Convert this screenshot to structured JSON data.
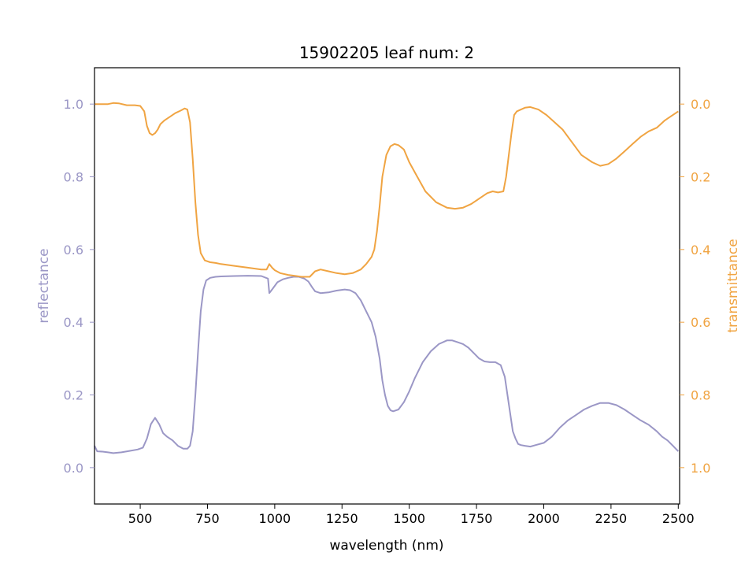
{
  "chart_data": {
    "type": "line",
    "title": "15902205 leaf num: 2",
    "xlabel": "wavelength (nm)",
    "ylabel_left": "reflectance",
    "ylabel_right": "transmittance",
    "xlim": [
      330,
      2505
    ],
    "ylim_left": [
      -0.1,
      1.1
    ],
    "ylim_right": [
      1.1,
      -0.1
    ],
    "right_axis_inverted": true,
    "grid": false,
    "x_ticks": [
      500,
      750,
      1000,
      1250,
      1500,
      1750,
      2000,
      2250,
      2500
    ],
    "y_ticks_left": [
      "0.0",
      "0.2",
      "0.4",
      "0.6",
      "0.8",
      "1.0"
    ],
    "y_ticks_right": [
      "0.0",
      "0.2",
      "0.4",
      "0.6",
      "0.8",
      "1.0"
    ],
    "colors": {
      "reflectance": "#9b97c6",
      "transmittance": "#f0a442"
    },
    "series": [
      {
        "key": "reflectance",
        "axis": "left",
        "x": [
          330,
          340,
          360,
          380,
          400,
          430,
          460,
          490,
          510,
          525,
          540,
          555,
          570,
          585,
          600,
          620,
          640,
          660,
          675,
          685,
          695,
          705,
          715,
          725,
          735,
          745,
          760,
          780,
          800,
          850,
          900,
          950,
          975,
          980,
          990,
          1000,
          1010,
          1030,
          1050,
          1070,
          1090,
          1110,
          1125,
          1140,
          1150,
          1170,
          1200,
          1230,
          1260,
          1280,
          1300,
          1320,
          1340,
          1360,
          1375,
          1390,
          1400,
          1410,
          1420,
          1430,
          1440,
          1460,
          1480,
          1500,
          1520,
          1550,
          1580,
          1610,
          1640,
          1660,
          1680,
          1700,
          1720,
          1740,
          1760,
          1780,
          1800,
          1820,
          1840,
          1855,
          1865,
          1875,
          1885,
          1895,
          1905,
          1915,
          1930,
          1950,
          1970,
          2000,
          2030,
          2060,
          2090,
          2120,
          2150,
          2180,
          2210,
          2240,
          2270,
          2300,
          2330,
          2360,
          2390,
          2420,
          2440,
          2460,
          2480,
          2500
        ],
        "y": [
          0.06,
          0.045,
          0.044,
          0.042,
          0.04,
          0.042,
          0.046,
          0.05,
          0.055,
          0.08,
          0.12,
          0.137,
          0.12,
          0.095,
          0.085,
          0.075,
          0.06,
          0.052,
          0.052,
          0.06,
          0.1,
          0.2,
          0.32,
          0.43,
          0.49,
          0.515,
          0.522,
          0.525,
          0.526,
          0.527,
          0.528,
          0.527,
          0.52,
          0.48,
          0.49,
          0.5,
          0.51,
          0.518,
          0.522,
          0.525,
          0.525,
          0.52,
          0.512,
          0.495,
          0.485,
          0.48,
          0.482,
          0.487,
          0.49,
          0.488,
          0.48,
          0.46,
          0.43,
          0.4,
          0.36,
          0.3,
          0.24,
          0.2,
          0.17,
          0.158,
          0.155,
          0.16,
          0.18,
          0.21,
          0.245,
          0.29,
          0.32,
          0.34,
          0.35,
          0.35,
          0.345,
          0.34,
          0.33,
          0.315,
          0.3,
          0.292,
          0.29,
          0.29,
          0.282,
          0.25,
          0.2,
          0.15,
          0.1,
          0.08,
          0.065,
          0.062,
          0.06,
          0.058,
          0.062,
          0.068,
          0.085,
          0.11,
          0.13,
          0.145,
          0.16,
          0.17,
          0.178,
          0.178,
          0.172,
          0.16,
          0.145,
          0.13,
          0.118,
          0.1,
          0.085,
          0.075,
          0.06,
          0.045
        ]
      },
      {
        "key": "transmittance",
        "axis": "right",
        "x": [
          330,
          350,
          380,
          400,
          420,
          450,
          480,
          500,
          515,
          525,
          535,
          545,
          555,
          565,
          575,
          590,
          610,
          630,
          650,
          665,
          675,
          685,
          695,
          705,
          715,
          725,
          740,
          760,
          780,
          800,
          850,
          900,
          950,
          970,
          980,
          990,
          1000,
          1020,
          1050,
          1080,
          1100,
          1130,
          1150,
          1170,
          1200,
          1230,
          1260,
          1290,
          1320,
          1340,
          1360,
          1370,
          1380,
          1390,
          1400,
          1415,
          1430,
          1445,
          1460,
          1480,
          1500,
          1530,
          1560,
          1600,
          1640,
          1670,
          1700,
          1730,
          1760,
          1790,
          1810,
          1830,
          1850,
          1860,
          1870,
          1880,
          1890,
          1900,
          1915,
          1930,
          1950,
          1980,
          2010,
          2040,
          2070,
          2100,
          2140,
          2180,
          2210,
          2240,
          2270,
          2300,
          2330,
          2360,
          2390,
          2420,
          2450,
          2470,
          2490,
          2500
        ],
        "y": [
          0.0,
          0.0,
          0.0,
          -0.003,
          -0.002,
          0.003,
          0.003,
          0.005,
          0.02,
          0.06,
          0.08,
          0.085,
          0.08,
          0.07,
          0.055,
          0.045,
          0.035,
          0.025,
          0.018,
          0.012,
          0.015,
          0.05,
          0.15,
          0.27,
          0.36,
          0.41,
          0.43,
          0.435,
          0.437,
          0.44,
          0.445,
          0.45,
          0.455,
          0.455,
          0.44,
          0.45,
          0.457,
          0.465,
          0.47,
          0.473,
          0.475,
          0.475,
          0.46,
          0.455,
          0.46,
          0.465,
          0.468,
          0.465,
          0.455,
          0.44,
          0.42,
          0.4,
          0.35,
          0.28,
          0.2,
          0.14,
          0.116,
          0.11,
          0.113,
          0.125,
          0.16,
          0.2,
          0.24,
          0.27,
          0.285,
          0.288,
          0.285,
          0.275,
          0.26,
          0.245,
          0.24,
          0.243,
          0.24,
          0.2,
          0.14,
          0.08,
          0.03,
          0.02,
          0.015,
          0.01,
          0.008,
          0.015,
          0.03,
          0.05,
          0.07,
          0.1,
          0.14,
          0.16,
          0.17,
          0.165,
          0.15,
          0.13,
          0.11,
          0.09,
          0.075,
          0.065,
          0.045,
          0.035,
          0.025,
          0.02
        ]
      }
    ]
  }
}
